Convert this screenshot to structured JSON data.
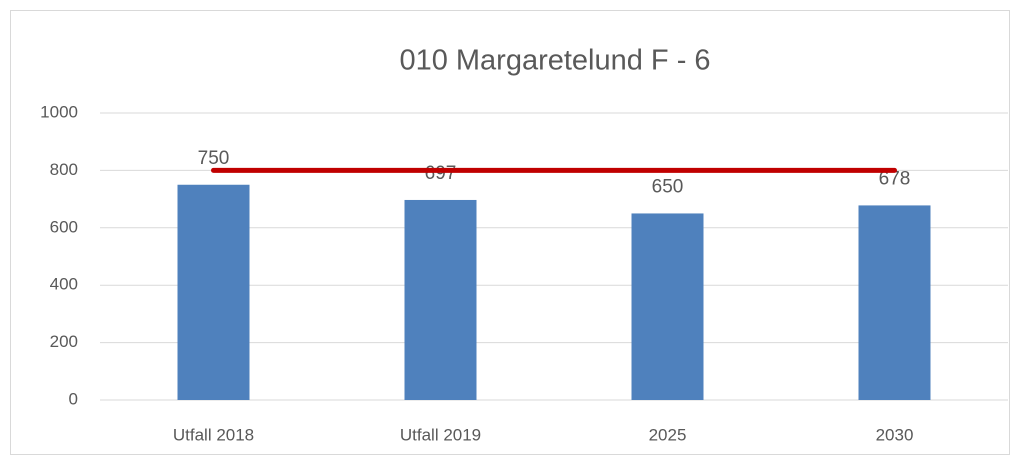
{
  "chart_data": {
    "type": "bar",
    "title": "010 Margaretelund F - 6",
    "categories": [
      "Utfall 2018",
      "Utfall 2019",
      "2025",
      "2030"
    ],
    "series": [
      {
        "type": "bar",
        "color": "#4f81bd",
        "values": [
          750,
          697,
          650,
          678
        ]
      },
      {
        "type": "line",
        "color": "#c00000",
        "values": [
          800,
          800,
          800,
          800
        ]
      }
    ],
    "ylim": [
      0,
      1000
    ],
    "yticks": [
      0,
      200,
      400,
      600,
      800,
      1000
    ],
    "grid": true
  }
}
